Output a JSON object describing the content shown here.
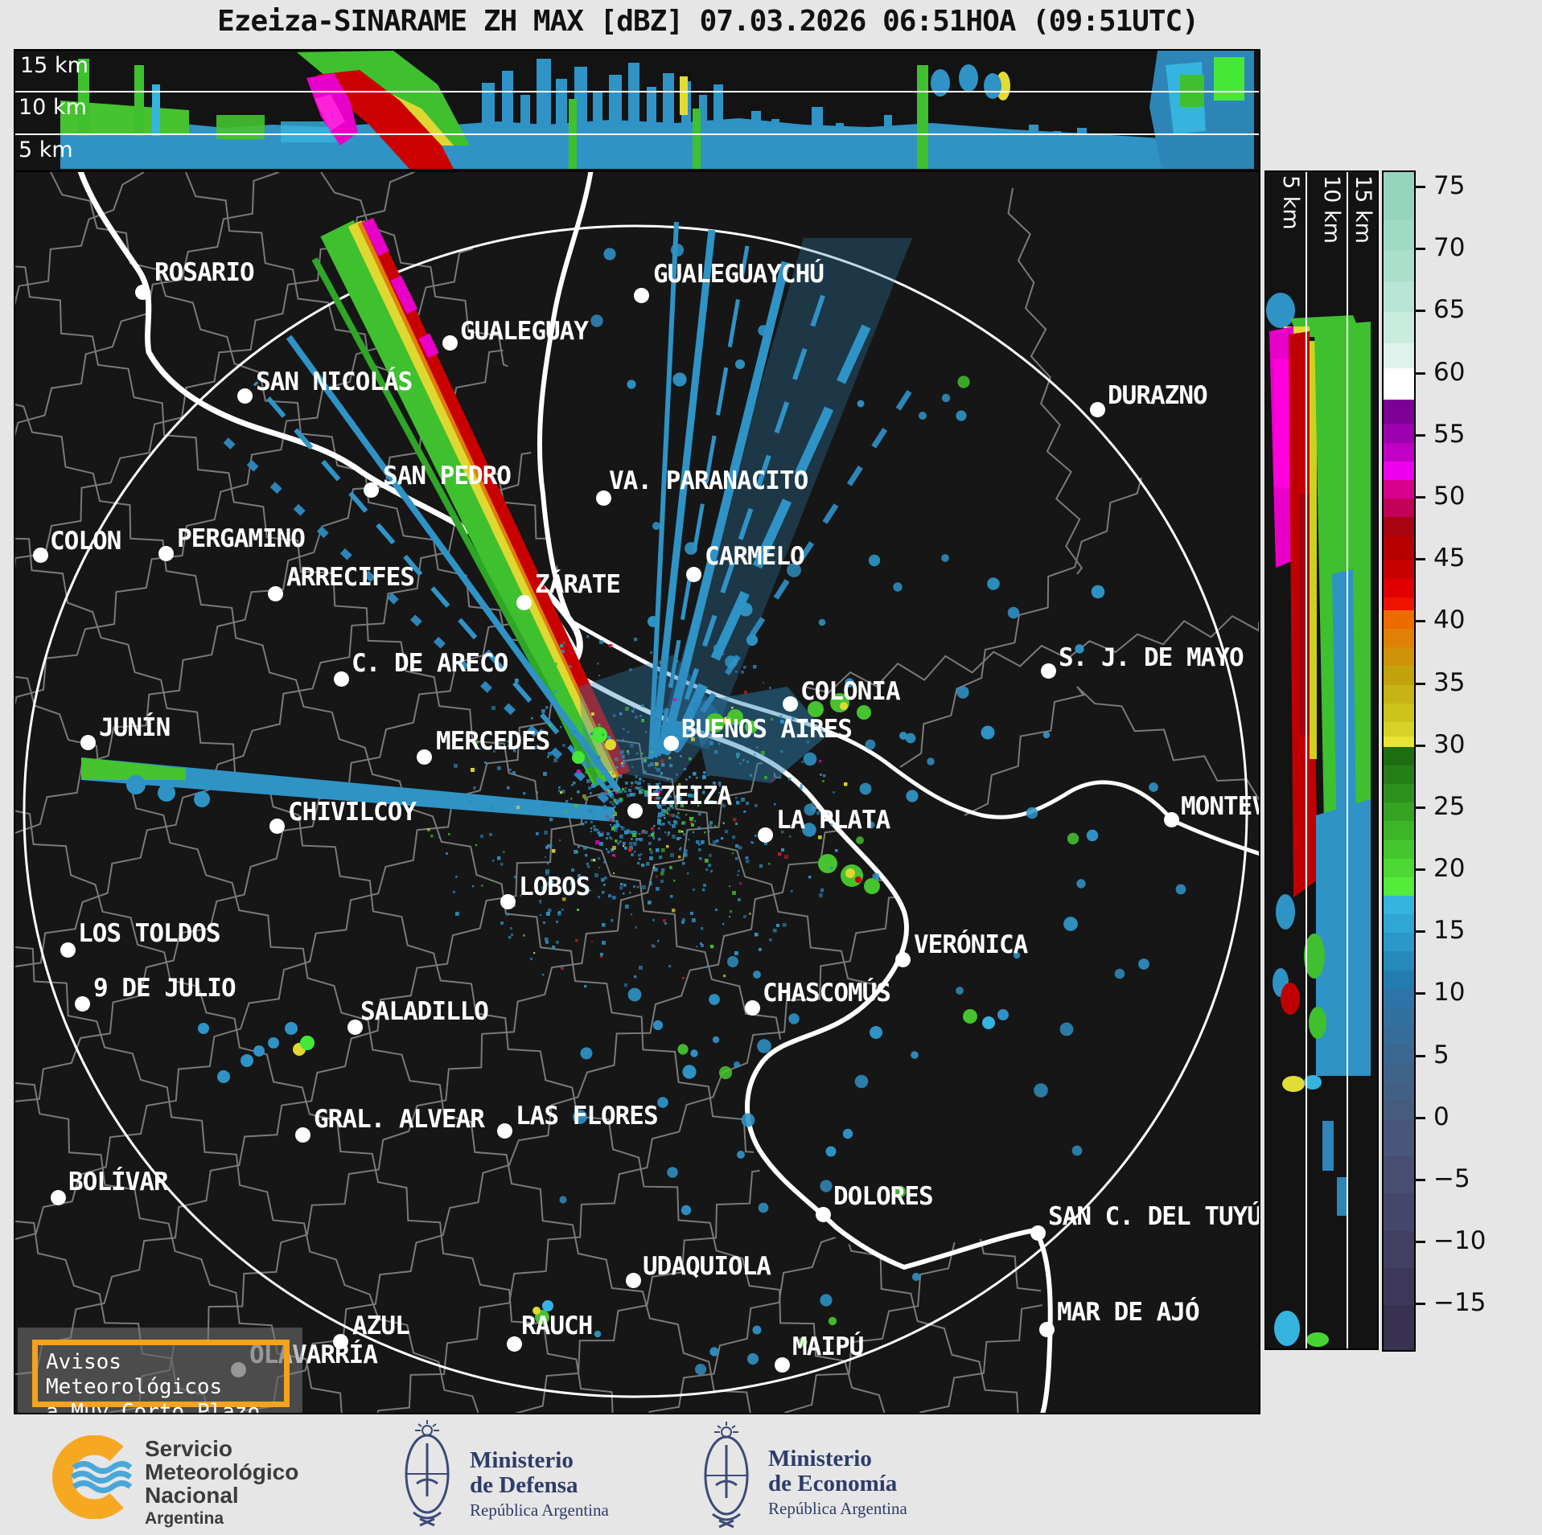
{
  "title": "Ezeiza-SINARAME ZH MAX [dBZ] 07.03.2026 06:51HOA (09:51UTC)",
  "product": {
    "radar": "Ezeiza-SINARAME",
    "field": "ZH MAX",
    "units": "dBZ",
    "date": "07.03.2026",
    "local_time": "06:51HOA",
    "utc_time": "09:51UTC"
  },
  "top_panel": {
    "altitude_labels": [
      "15 km",
      "10 km",
      "5 km"
    ]
  },
  "right_panel": {
    "altitude_labels": [
      "5 km",
      "10 km",
      "15 km"
    ]
  },
  "colorbar": {
    "vmax": 76.3,
    "vmin": -18.6,
    "ticks": [
      75,
      70,
      65,
      60,
      55,
      50,
      45,
      40,
      35,
      30,
      25,
      20,
      15,
      10,
      5,
      0,
      -5,
      -10,
      -15
    ],
    "stops": [
      {
        "v": 76.3,
        "c": "#96d5bd"
      },
      {
        "v": 72.5,
        "c": "#9fdac4"
      },
      {
        "v": 70,
        "c": "#aadfcb"
      },
      {
        "v": 67.5,
        "c": "#b8e5d5"
      },
      {
        "v": 65,
        "c": "#c9ecdf"
      },
      {
        "v": 62.5,
        "c": "#def3eb"
      },
      {
        "v": 60.5,
        "c": "#ffffff"
      },
      {
        "v": 58,
        "c": "#7c0096"
      },
      {
        "v": 56,
        "c": "#9c00ae"
      },
      {
        "v": 54.5,
        "c": "#c000c4"
      },
      {
        "v": 53,
        "c": "#ee00ee"
      },
      {
        "v": 51.5,
        "c": "#d6008c"
      },
      {
        "v": 50,
        "c": "#c20058"
      },
      {
        "v": 48.5,
        "c": "#a60410"
      },
      {
        "v": 47,
        "c": "#b60000"
      },
      {
        "v": 45,
        "c": "#c90000"
      },
      {
        "v": 43.5,
        "c": "#e00000"
      },
      {
        "v": 42,
        "c": "#ee1200"
      },
      {
        "v": 41,
        "c": "#ec6c00"
      },
      {
        "v": 39.5,
        "c": "#e08006"
      },
      {
        "v": 38,
        "c": "#cf9209"
      },
      {
        "v": 36.5,
        "c": "#c3a30d"
      },
      {
        "v": 35,
        "c": "#c6b414"
      },
      {
        "v": 33.5,
        "c": "#ccc31b"
      },
      {
        "v": 32,
        "c": "#d6d326"
      },
      {
        "v": 30.8,
        "c": "#e7e434"
      },
      {
        "v": 30,
        "c": "#1c6e10"
      },
      {
        "v": 28.5,
        "c": "#247f16"
      },
      {
        "v": 27,
        "c": "#2c911c"
      },
      {
        "v": 25.5,
        "c": "#34a322"
      },
      {
        "v": 24,
        "c": "#3cb528"
      },
      {
        "v": 22.5,
        "c": "#44c72e"
      },
      {
        "v": 21,
        "c": "#4cd934"
      },
      {
        "v": 19.5,
        "c": "#54eb3a"
      },
      {
        "v": 18,
        "c": "#35b4e0"
      },
      {
        "v": 16.5,
        "c": "#2fa6d4"
      },
      {
        "v": 15,
        "c": "#2a98c8"
      },
      {
        "v": 13.5,
        "c": "#268abc"
      },
      {
        "v": 12,
        "c": "#237cb0"
      },
      {
        "v": 10.5,
        "c": "#2e74a6"
      },
      {
        "v": 9,
        "c": "#32709f"
      },
      {
        "v": 7.5,
        "c": "#366c98"
      },
      {
        "v": 6,
        "c": "#3a6891"
      },
      {
        "v": 4.5,
        "c": "#3e648a"
      },
      {
        "v": 3,
        "c": "#426083"
      },
      {
        "v": 1.5,
        "c": "#455c7c"
      },
      {
        "v": 0,
        "c": "#47567a"
      },
      {
        "v": -3,
        "c": "#474e72"
      },
      {
        "v": -6,
        "c": "#44476a"
      },
      {
        "v": -9,
        "c": "#413f62"
      },
      {
        "v": -12,
        "c": "#3d385a"
      },
      {
        "v": -15,
        "c": "#383152"
      }
    ]
  },
  "map": {
    "warning": {
      "line1": "Avisos Meteorológicos",
      "line2": "a Muy Corto Plazo"
    },
    "cities": [
      {
        "name": "ROSARIO",
        "dot": [
          159,
          150
        ],
        "label": [
          173,
          110
        ]
      },
      {
        "name": "GUALEGUAYCHÚ",
        "dot": [
          779,
          154
        ],
        "label": [
          793,
          112
        ]
      },
      {
        "name": "GUALEGUAY",
        "dot": [
          541,
          213
        ],
        "label": [
          553,
          183
        ]
      },
      {
        "name": "DURAZNO",
        "dot": [
          1346,
          296
        ],
        "label": [
          1358,
          263
        ]
      },
      {
        "name": "SAN NICOLÁS",
        "dot": [
          286,
          279
        ],
        "label": [
          299,
          246
        ]
      },
      {
        "name": "SAN PEDRO",
        "dot": [
          443,
          396
        ],
        "label": [
          457,
          363
        ]
      },
      {
        "name": "VA. PARANACITO",
        "dot": [
          732,
          406
        ],
        "label": [
          738,
          369
        ]
      },
      {
        "name": "COLON",
        "dot": [
          32,
          477
        ],
        "label": [
          43,
          444
        ]
      },
      {
        "name": "PERGAMINO",
        "dot": [
          188,
          475
        ],
        "label": [
          201,
          441
        ]
      },
      {
        "name": "CARMELO",
        "dot": [
          844,
          501
        ],
        "label": [
          857,
          463
        ]
      },
      {
        "name": "ARRECIFES",
        "dot": [
          324,
          525
        ],
        "label": [
          337,
          489
        ]
      },
      {
        "name": "ZÁRATE",
        "dot": [
          633,
          536
        ],
        "label": [
          646,
          498
        ]
      },
      {
        "name": "C. DE ARECO",
        "dot": [
          406,
          631
        ],
        "label": [
          418,
          596
        ]
      },
      {
        "name": "S. J. DE MAYO",
        "dot": [
          1285,
          621
        ],
        "label": [
          1297,
          589
        ]
      },
      {
        "name": "COLONIA",
        "dot": [
          964,
          662
        ],
        "label": [
          976,
          631
        ]
      },
      {
        "name": "JUNÍN",
        "dot": [
          91,
          710
        ],
        "label": [
          104,
          676
        ]
      },
      {
        "name": "BUENOS AIRES",
        "dot": [
          816,
          711
        ],
        "label": [
          828,
          678
        ]
      },
      {
        "name": "MERCEDES",
        "dot": [
          509,
          728
        ],
        "label": [
          523,
          693
        ]
      },
      {
        "name": "EZEIZA",
        "dot": [
          771,
          795
        ],
        "label": [
          784,
          761
        ]
      },
      {
        "name": "MONTEVIDEO",
        "dot": [
          1438,
          806
        ],
        "label": [
          1449,
          774
        ]
      },
      {
        "name": "CHIVILCOY",
        "dot": [
          326,
          814
        ],
        "label": [
          339,
          781
        ]
      },
      {
        "name": "LA PLATA",
        "dot": [
          933,
          825
        ],
        "label": [
          946,
          791
        ]
      },
      {
        "name": "LOS TOLDOS",
        "dot": [
          66,
          968
        ],
        "label": [
          78,
          932
        ]
      },
      {
        "name": "LOBOS",
        "dot": [
          613,
          908
        ],
        "label": [
          626,
          874
        ]
      },
      {
        "name": "VERÓNICA",
        "dot": [
          1104,
          980
        ],
        "label": [
          1117,
          946
        ]
      },
      {
        "name": "9 DE JULIO",
        "dot": [
          84,
          1035
        ],
        "label": [
          97,
          1000
        ]
      },
      {
        "name": "CHASCOMÚS",
        "dot": [
          917,
          1040
        ],
        "label": [
          929,
          1006
        ]
      },
      {
        "name": "SALADILLO",
        "dot": [
          423,
          1064
        ],
        "label": [
          429,
          1029
        ]
      },
      {
        "name": "GRAL. ALVEAR",
        "dot": [
          358,
          1198
        ],
        "label": [
          371,
          1163
        ]
      },
      {
        "name": "LAS FLORES",
        "dot": [
          609,
          1193
        ],
        "label": [
          622,
          1159
        ]
      },
      {
        "name": "BOLÍVAR",
        "dot": [
          54,
          1276
        ],
        "label": [
          66,
          1241
        ]
      },
      {
        "name": "DOLORES",
        "dot": [
          1005,
          1297
        ],
        "label": [
          1017,
          1259
        ]
      },
      {
        "name": "UDAQUIOLA",
        "dot": [
          769,
          1379
        ],
        "label": [
          780,
          1346
        ]
      },
      {
        "name": "SAN C. DEL TUYÚ",
        "dot": [
          1272,
          1320
        ],
        "label": [
          1284,
          1284
        ]
      },
      {
        "name": "MAR DE AJÓ",
        "dot": [
          1283,
          1440
        ],
        "label": [
          1295,
          1403
        ]
      },
      {
        "name": "AZUL",
        "dot": [
          405,
          1455
        ],
        "label": [
          419,
          1420
        ]
      },
      {
        "name": "OLAVARRÍA",
        "dot": [
          278,
          1490
        ],
        "label": [
          291,
          1456
        ]
      },
      {
        "name": "RAUCH",
        "dot": [
          621,
          1458
        ],
        "label": [
          629,
          1420
        ]
      },
      {
        "name": "MAIPÚ",
        "dot": [
          954,
          1484
        ],
        "label": [
          966,
          1446
        ]
      }
    ]
  },
  "footer": {
    "smn": {
      "l1": "Servicio",
      "l2": "Meteorológico",
      "l3": "Nacional",
      "l4": "Argentina"
    },
    "defensa": {
      "l1": "Ministerio",
      "l2": "de Defensa",
      "l3": "República Argentina"
    },
    "economia": {
      "l1": "Ministerio",
      "l2": "de Economía",
      "l3": "República Argentina"
    }
  },
  "colors": {
    "accent_orange": "#f6a21d",
    "ring_white": "#ffffff",
    "boundary_gray": "#7a7a7a",
    "map_bg": "#161616",
    "page_bg": "#e6e6e6"
  }
}
